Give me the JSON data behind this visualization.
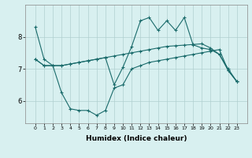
{
  "xlabel": "Humidex (Indice chaleur)",
  "background_color": "#d8f0f0",
  "grid_color": "#b0d0d0",
  "line_color": "#1a6b6b",
  "x": [
    0,
    1,
    2,
    3,
    4,
    5,
    6,
    7,
    8,
    9,
    10,
    11,
    12,
    13,
    14,
    15,
    16,
    17,
    18,
    19,
    20,
    21,
    22,
    23
  ],
  "line1": [
    8.3,
    7.3,
    7.1,
    7.1,
    7.15,
    7.2,
    7.25,
    7.3,
    7.35,
    6.5,
    7.05,
    7.7,
    8.5,
    8.6,
    8.2,
    8.5,
    8.2,
    8.6,
    7.75,
    7.65,
    7.6,
    7.45,
    7.0,
    6.6
  ],
  "line2": [
    7.3,
    7.1,
    7.1,
    6.25,
    5.75,
    5.7,
    5.7,
    5.55,
    5.7,
    6.4,
    6.5,
    7.0,
    7.1,
    7.2,
    7.25,
    7.3,
    7.35,
    7.4,
    7.45,
    7.5,
    7.55,
    7.6,
    6.95,
    6.6
  ],
  "line3": [
    7.3,
    7.1,
    7.1,
    7.1,
    7.15,
    7.2,
    7.25,
    7.3,
    7.35,
    7.4,
    7.45,
    7.5,
    7.55,
    7.6,
    7.65,
    7.7,
    7.72,
    7.74,
    7.76,
    7.78,
    7.65,
    7.45,
    6.95,
    6.6
  ],
  "ylim": [
    5.3,
    9.0
  ],
  "yticks": [
    6,
    7,
    8
  ],
  "xticks": [
    0,
    1,
    2,
    3,
    4,
    5,
    6,
    7,
    8,
    9,
    10,
    11,
    12,
    13,
    14,
    15,
    16,
    17,
    18,
    19,
    20,
    21,
    22,
    23
  ]
}
